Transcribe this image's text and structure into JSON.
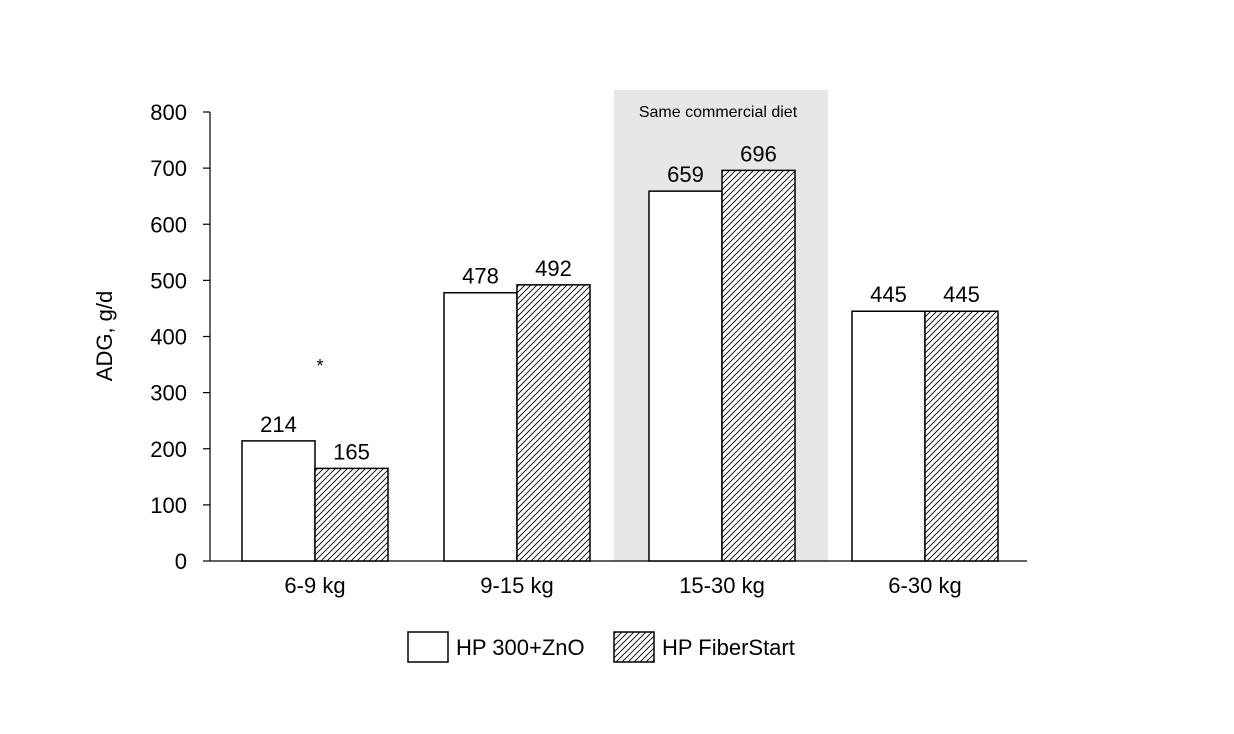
{
  "chart_data": {
    "type": "bar",
    "title": "",
    "xlabel": "",
    "ylabel": "ADG, g/d",
    "ylim": [
      0,
      800
    ],
    "yticks": [
      0,
      100,
      200,
      300,
      400,
      500,
      600,
      700,
      800
    ],
    "grid": false,
    "legend_position": "bottom",
    "categories": [
      "6-9 kg",
      "9-15 kg",
      "15-30 kg",
      "6-30 kg"
    ],
    "series": [
      {
        "name": "HP 300+ZnO",
        "values": [
          214,
          478,
          659,
          445
        ],
        "fill": "plain"
      },
      {
        "name": "HP FiberStart",
        "values": [
          165,
          492,
          696,
          445
        ],
        "fill": "hatched"
      }
    ],
    "annotations": [
      {
        "text": "*",
        "category_index": 0
      },
      {
        "text": "Same commercial diet",
        "category_index": 2,
        "shaded_region": true
      }
    ]
  },
  "colors": {
    "bar_outline": "#000000",
    "bar_fill": "#ffffff",
    "hatch_line": "#000000",
    "shaded_region": "#e7e7e7",
    "axis": "#000000"
  }
}
